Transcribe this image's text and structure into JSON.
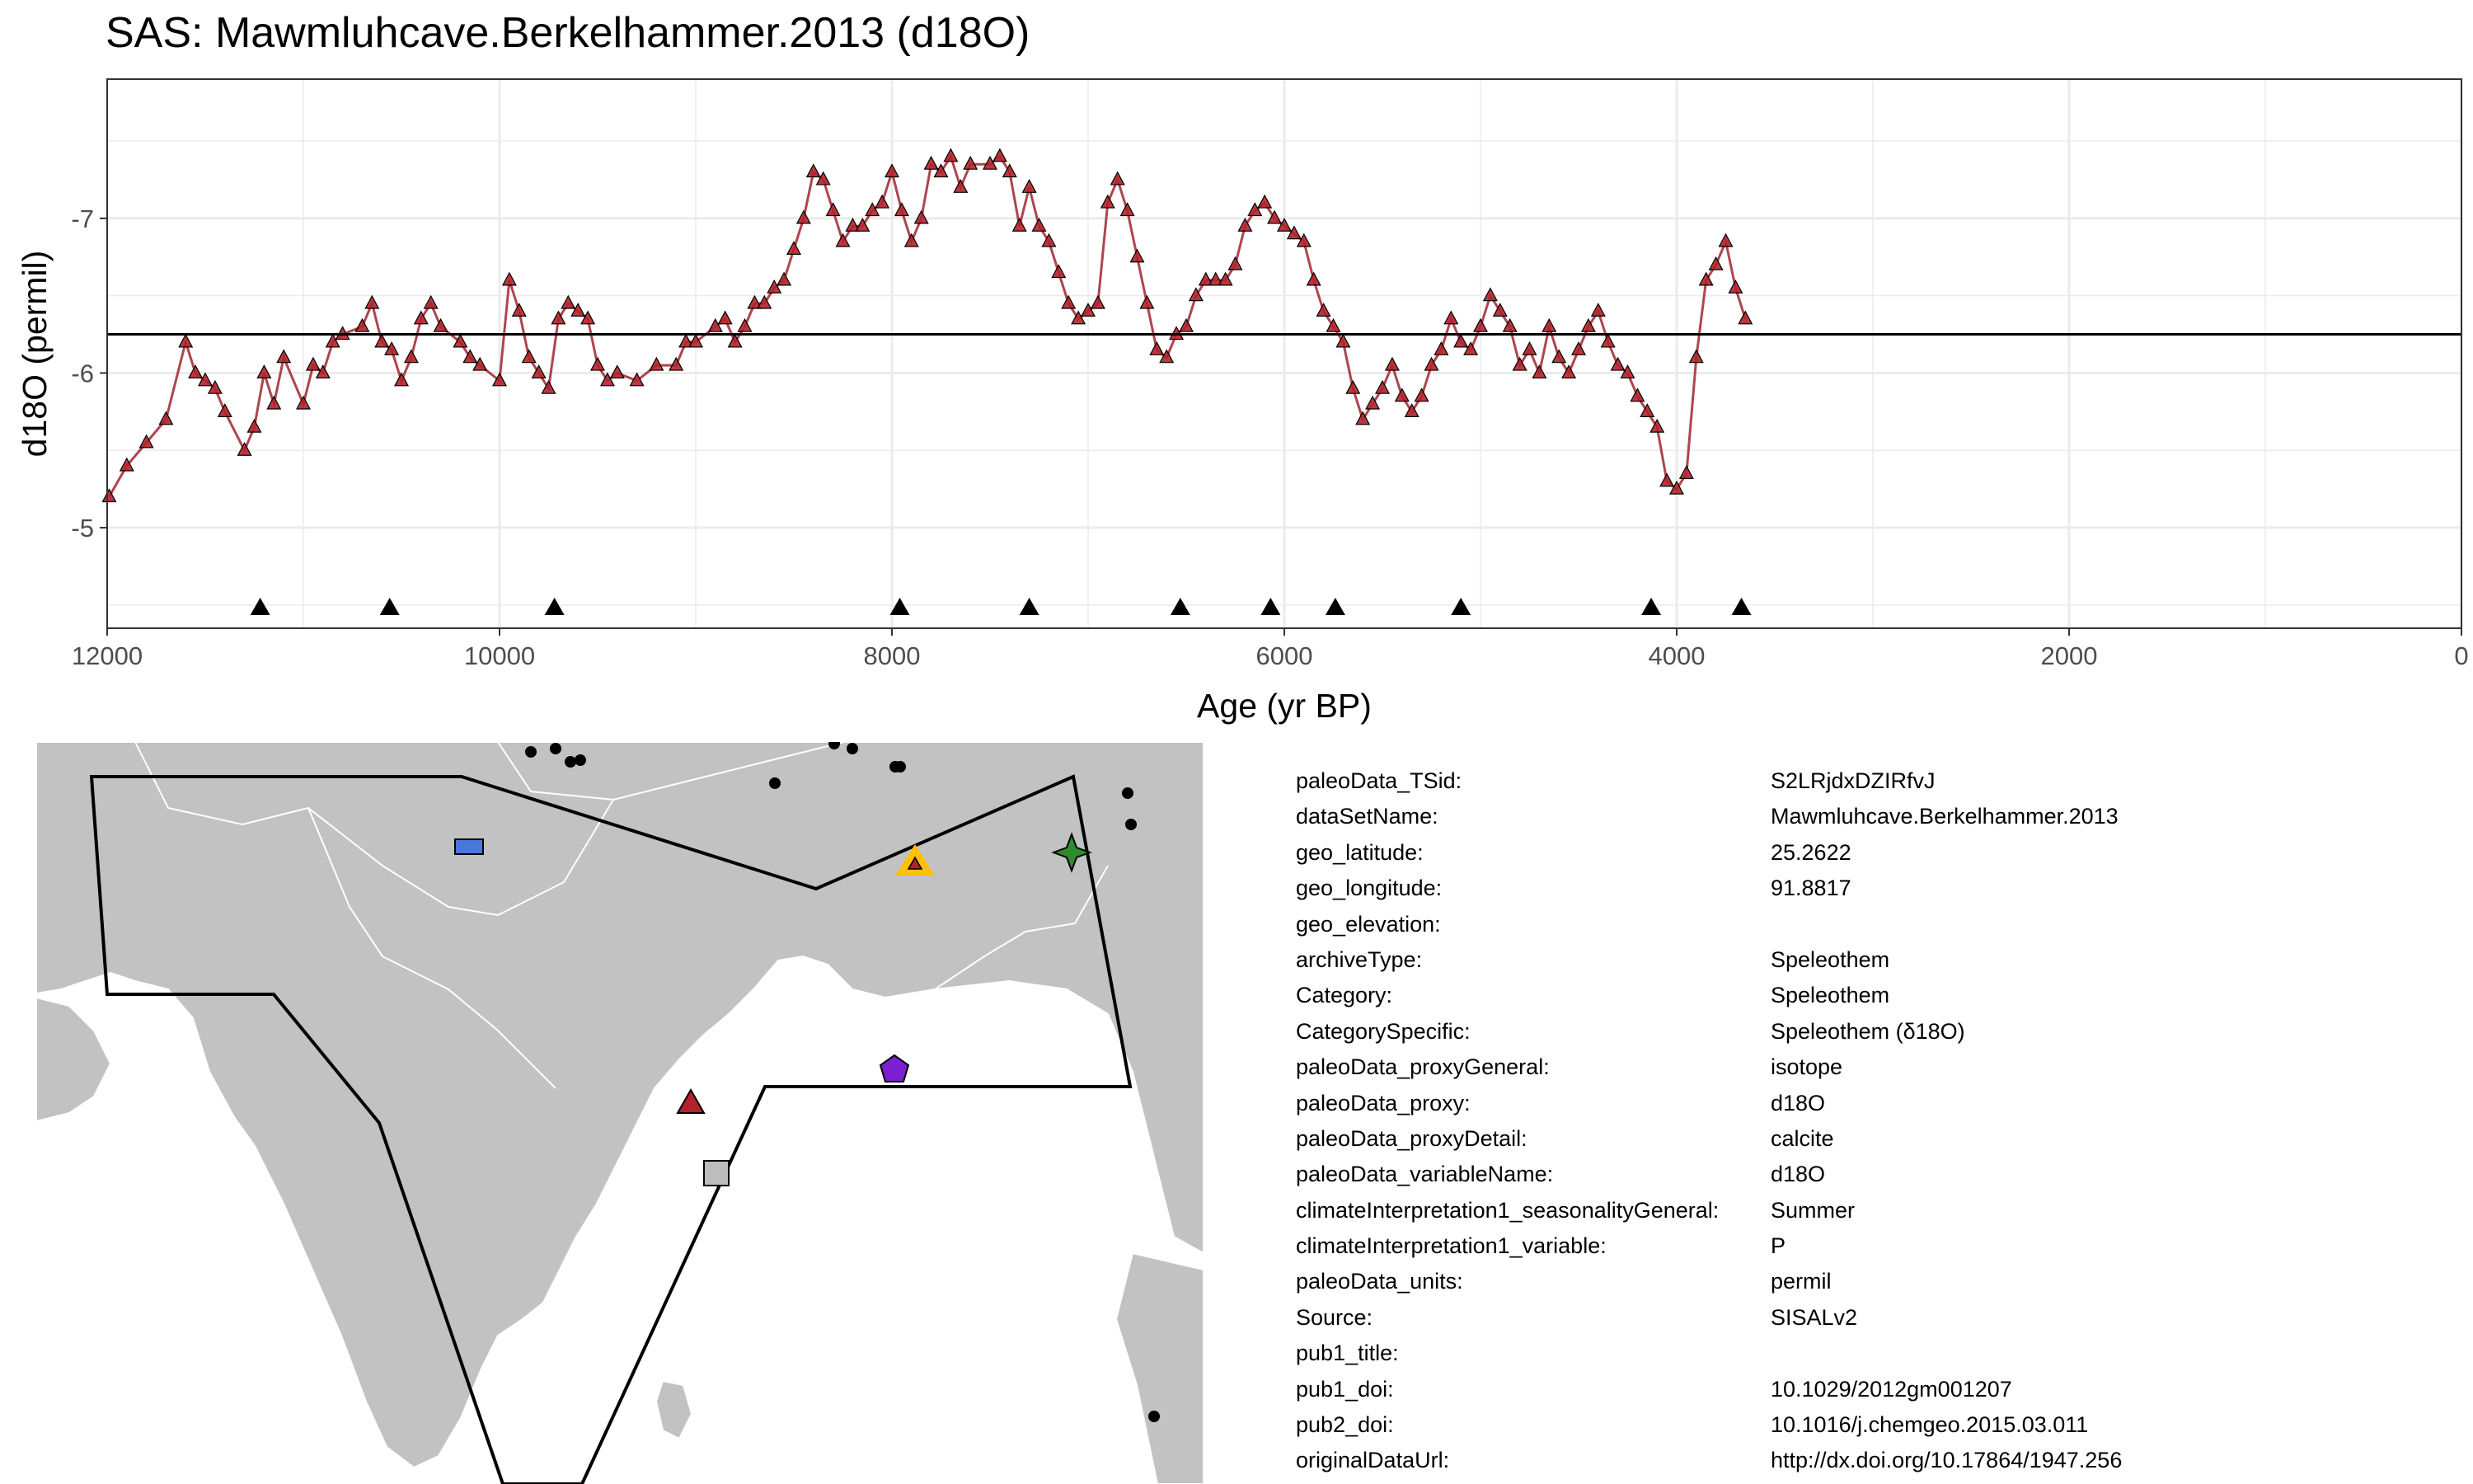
{
  "title": "SAS: Mawmluhcave.Berkelhammer.2013 (d18O)",
  "colors": {
    "series_fill": "#b2222b",
    "series_line": "#a0252f",
    "point_edge": "#000000",
    "grid": "#ebebeb",
    "land": "#c2c2c2",
    "border": "#ffffff"
  },
  "chart_data": {
    "type": "line",
    "title": "SAS: Mawmluhcave.Berkelhammer.2013 (d18O)",
    "xlabel": "Age (yr BP)",
    "ylabel": "d18O (permil)",
    "x_reversed": true,
    "xlim": [
      12000,
      0
    ],
    "ylim": [
      -4.35,
      -7.9
    ],
    "y_reversed": true,
    "x_ticks": [
      12000,
      10000,
      8000,
      6000,
      4000,
      2000,
      0
    ],
    "x_tick_labels": [
      "12000",
      "10000",
      "8000",
      "6000",
      "4000",
      "2000",
      "0"
    ],
    "y_ticks": [
      -7,
      -6,
      -5
    ],
    "y_tick_labels": [
      "-7",
      "-6",
      "-5"
    ],
    "grid": true,
    "mean_line": -6.25,
    "series": [
      {
        "x": [
          11990,
          11900,
          11800,
          11700,
          11600,
          11550,
          11500,
          11450,
          11400,
          11300,
          11250,
          11200,
          11150,
          11100,
          11000,
          10950,
          10900,
          10850,
          10800,
          10700,
          10650,
          10600,
          10550,
          10500,
          10450,
          10400,
          10350,
          10300,
          10200,
          10150,
          10100,
          10000,
          9950,
          9900,
          9850,
          9800,
          9750,
          9700,
          9650,
          9600,
          9550,
          9500,
          9450,
          9400,
          9300,
          9200,
          9100,
          9050,
          9000,
          8900,
          8850,
          8800,
          8750,
          8700,
          8650,
          8600,
          8550,
          8500,
          8450,
          8400,
          8350,
          8300,
          8250,
          8200,
          8150,
          8100,
          8050,
          8000,
          7950,
          7900,
          7850,
          7800,
          7750,
          7700,
          7650,
          7600,
          7500,
          7450,
          7400,
          7350,
          7300,
          7250,
          7200,
          7150,
          7100,
          7050,
          7000,
          6950,
          6900,
          6850,
          6800,
          6750,
          6700,
          6650,
          6600,
          6550,
          6500,
          6450,
          6400,
          6350,
          6300,
          6250,
          6200,
          6150,
          6100,
          6050,
          6000,
          5950,
          5900,
          5850,
          5800,
          5750,
          5700,
          5650,
          5600,
          5550,
          5500,
          5450,
          5400,
          5350,
          5300,
          5250,
          5200,
          5150,
          5100,
          5050,
          5000,
          4950,
          4900,
          4850,
          4800,
          4750,
          4700,
          4650,
          4600,
          4550,
          4500,
          4450,
          4400,
          4350,
          4300,
          4250,
          4200,
          4150,
          4100,
          4050,
          4000,
          3950,
          3900,
          3850,
          3800,
          3750,
          3700,
          3650
        ],
        "y": [
          -5.2,
          -5.4,
          -5.55,
          -5.7,
          -6.2,
          -6.0,
          -5.95,
          -5.9,
          -5.75,
          -5.5,
          -5.65,
          -6.0,
          -5.8,
          -6.1,
          -5.8,
          -6.05,
          -6.0,
          -6.2,
          -6.25,
          -6.3,
          -6.45,
          -6.2,
          -6.15,
          -5.95,
          -6.1,
          -6.35,
          -6.45,
          -6.3,
          -6.2,
          -6.1,
          -6.05,
          -5.95,
          -6.6,
          -6.4,
          -6.1,
          -6.0,
          -5.9,
          -6.35,
          -6.45,
          -6.4,
          -6.35,
          -6.05,
          -5.95,
          -6.0,
          -5.95,
          -6.05,
          -6.05,
          -6.2,
          -6.2,
          -6.3,
          -6.35,
          -6.2,
          -6.3,
          -6.45,
          -6.45,
          -6.55,
          -6.6,
          -6.8,
          -7.0,
          -7.3,
          -7.25,
          -7.05,
          -6.85,
          -6.95,
          -6.95,
          -7.05,
          -7.1,
          -7.3,
          -7.05,
          -6.85,
          -7.0,
          -7.35,
          -7.3,
          -7.4,
          -7.2,
          -7.35,
          -7.35,
          -7.4,
          -7.3,
          -6.95,
          -7.2,
          -6.95,
          -6.85,
          -6.65,
          -6.45,
          -6.35,
          -6.4,
          -6.45,
          -7.1,
          -7.25,
          -7.05,
          -6.75,
          -6.45,
          -6.15,
          -6.1,
          -6.25,
          -6.3,
          -6.5,
          -6.6,
          -6.6,
          -6.6,
          -6.7,
          -6.95,
          -7.05,
          -7.1,
          -7.0,
          -6.95,
          -6.9,
          -6.85,
          -6.6,
          -6.4,
          -6.3,
          -6.2,
          -5.9,
          -5.7,
          -5.8,
          -5.9,
          -6.05,
          -5.85,
          -5.75,
          -5.85,
          -6.05,
          -6.15,
          -6.35,
          -6.2,
          -6.15,
          -6.3,
          -6.5,
          -6.4,
          -6.3,
          -6.05,
          -6.15,
          -6.0,
          -6.3,
          -6.1,
          -6.0,
          -6.15,
          -6.3,
          -6.4,
          -6.2,
          -6.05,
          -6.0,
          -5.85,
          -5.75,
          -5.65,
          -5.3,
          -5.25,
          -5.35,
          -6.1,
          -6.6,
          -6.7,
          -6.85,
          -6.55,
          -6.35
        ]
      }
    ],
    "age_control_points": [
      11220,
      10560,
      9720,
      7960,
      7300,
      6530,
      6070,
      5740,
      5100,
      4130,
      3670
    ],
    "age_control_marker": "triangle"
  },
  "map": {
    "region_outline": "polygon",
    "sites": [
      {
        "name": "target-site",
        "shape": "triangle",
        "fill": "#ffc107",
        "inner": "#b2222b"
      },
      {
        "name": "site-green-star",
        "shape": "star",
        "fill": "#2e8b2e"
      },
      {
        "name": "site-blue-rectangle",
        "shape": "rectangle",
        "fill": "#4a78d8"
      },
      {
        "name": "site-purple-pentagon",
        "shape": "pentagon",
        "fill": "#7b1fd0"
      },
      {
        "name": "site-red-triangle",
        "shape": "triangle",
        "fill": "#b2222b"
      },
      {
        "name": "site-gray-square",
        "shape": "square",
        "fill": "#bdbdbd"
      }
    ]
  },
  "metadata": [
    {
      "key": "paleoData_TSid:",
      "value": "S2LRjdxDZIRfvJ"
    },
    {
      "key": "dataSetName:",
      "value": "Mawmluhcave.Berkelhammer.2013"
    },
    {
      "key": "geo_latitude:",
      "value": "25.2622"
    },
    {
      "key": "geo_longitude:",
      "value": "91.8817"
    },
    {
      "key": "geo_elevation:",
      "value": ""
    },
    {
      "key": "archiveType:",
      "value": "Speleothem"
    },
    {
      "key": "Category:",
      "value": "Speleothem"
    },
    {
      "key": "CategorySpecific:",
      "value": "Speleothem (δ18O)"
    },
    {
      "key": "paleoData_proxyGeneral:",
      "value": "isotope"
    },
    {
      "key": "paleoData_proxy:",
      "value": "d18O"
    },
    {
      "key": "paleoData_proxyDetail:",
      "value": "calcite"
    },
    {
      "key": "paleoData_variableName:",
      "value": "d18O"
    },
    {
      "key": "climateInterpretation1_seasonalityGeneral:",
      "value": "Summer"
    },
    {
      "key": "climateInterpretation1_variable:",
      "value": "P"
    },
    {
      "key": "paleoData_units:",
      "value": "permil"
    },
    {
      "key": "Source:",
      "value": "SISALv2"
    },
    {
      "key": "pub1_title:",
      "value": ""
    },
    {
      "key": "pub1_doi:",
      "value": "10.1029/2012gm001207"
    },
    {
      "key": "pub2_doi:",
      "value": "10.1016/j.chemgeo.2015.03.011"
    },
    {
      "key": "originalDataUrl:",
      "value": "http://dx.doi.org/10.17864/1947.256"
    }
  ]
}
